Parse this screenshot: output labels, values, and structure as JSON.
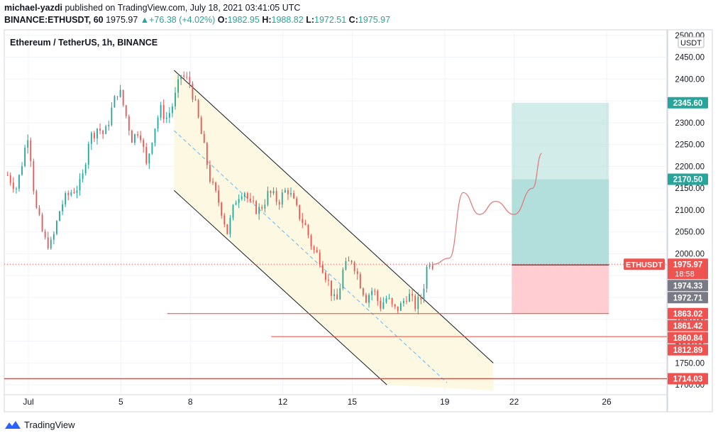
{
  "header": {
    "author": "michael-yazdi",
    "published_text": "published on TradingView.com, July 18, 2021 03:41:05 UTC",
    "symbol_line": "BINANCE:ETHUSDT, 60",
    "last": "1975.97",
    "change": "▲+76.38 (+4.02%)",
    "o_label": "O:",
    "o": "1982.95",
    "h_label": "H:",
    "h": "1988.82",
    "l_label": "L:",
    "l": "1972.51",
    "c_label": "C:",
    "c": "1975.97"
  },
  "footer": {
    "brand": "TradingView",
    "logo_icon": "tradingview-logo-icon"
  },
  "chart_data": {
    "type": "candlestick",
    "title": "Ethereum / TetherUS, 1h, BINANCE",
    "currency_label": "USDT",
    "ylim": [
      1700,
      2500
    ],
    "y_ticks": [
      1700,
      1750,
      1800,
      1850,
      1900,
      1950,
      2000,
      2050,
      2100,
      2150,
      2200,
      2250,
      2300,
      2350,
      2400,
      2450,
      2500
    ],
    "x_ticks": [
      {
        "label": "Jul",
        "day": 1
      },
      {
        "label": "5",
        "day": 5
      },
      {
        "label": "8",
        "day": 8
      },
      {
        "label": "12",
        "day": 12
      },
      {
        "label": "15",
        "day": 15
      },
      {
        "label": "19",
        "day": 19
      },
      {
        "label": "22",
        "day": 22
      },
      {
        "label": "26",
        "day": 26
      }
    ],
    "price_path": [
      [
        0.1,
        2180
      ],
      [
        0.5,
        2150
      ],
      [
        1.0,
        2280
      ],
      [
        1.3,
        2110
      ],
      [
        1.7,
        2030
      ],
      [
        2.0,
        2020
      ],
      [
        2.4,
        2110
      ],
      [
        2.8,
        2140
      ],
      [
        3.3,
        2160
      ],
      [
        3.6,
        2260
      ],
      [
        4.0,
        2290
      ],
      [
        4.3,
        2270
      ],
      [
        4.6,
        2330
      ],
      [
        4.9,
        2380
      ],
      [
        5.2,
        2320
      ],
      [
        5.5,
        2260
      ],
      [
        5.8,
        2290
      ],
      [
        6.1,
        2200
      ],
      [
        6.4,
        2280
      ],
      [
        6.7,
        2330
      ],
      [
        7.0,
        2310
      ],
      [
        7.3,
        2350
      ],
      [
        7.6,
        2410
      ],
      [
        8.0,
        2390
      ],
      [
        8.3,
        2320
      ],
      [
        8.6,
        2240
      ],
      [
        8.9,
        2160
      ],
      [
        9.3,
        2110
      ],
      [
        9.6,
        2050
      ],
      [
        10.0,
        2130
      ],
      [
        10.3,
        2150
      ],
      [
        10.6,
        2110
      ],
      [
        11.0,
        2100
      ],
      [
        11.4,
        2140
      ],
      [
        11.8,
        2120
      ],
      [
        12.2,
        2150
      ],
      [
        12.6,
        2100
      ],
      [
        13.0,
        2060
      ],
      [
        13.3,
        2010
      ],
      [
        13.6,
        1990
      ],
      [
        14.0,
        1930
      ],
      [
        14.3,
        1880
      ],
      [
        14.6,
        1960
      ],
      [
        15.0,
        1990
      ],
      [
        15.3,
        1940
      ],
      [
        15.6,
        1900
      ],
      [
        15.9,
        1920
      ],
      [
        16.2,
        1880
      ],
      [
        16.5,
        1900
      ],
      [
        16.8,
        1870
      ],
      [
        17.1,
        1880
      ],
      [
        17.4,
        1910
      ],
      [
        17.7,
        1880
      ],
      [
        18.0,
        1900
      ],
      [
        18.3,
        1990
      ],
      [
        18.5,
        1976
      ]
    ],
    "last_price": 1975.97,
    "last_price_countdown": "18:58",
    "projection_path": [
      [
        18.5,
        1976
      ],
      [
        19.2,
        1990
      ],
      [
        19.8,
        2140
      ],
      [
        20.5,
        2090
      ],
      [
        21.2,
        2120
      ],
      [
        22.0,
        2090
      ],
      [
        22.8,
        2150
      ],
      [
        23.2,
        2230
      ]
    ],
    "position": {
      "entry": 1974.33,
      "stop": 1863.02,
      "target1": 2170.5,
      "target2": 2345.6
    },
    "levels": [
      1863.02,
      1860.84,
      1714.03
    ],
    "channel": {
      "upper": [
        [
          7.3,
          2420
        ],
        [
          21.1,
          1750
        ]
      ],
      "lower": [
        [
          7.3,
          2145
        ],
        [
          16.5,
          1700
        ]
      ],
      "mid": [
        [
          7.3,
          2282
        ],
        [
          19.1,
          1705
        ]
      ]
    },
    "price_labels": [
      {
        "text": "2345.60",
        "value": 2345.6,
        "color": "#26a69a"
      },
      {
        "text": "2170.50",
        "value": 2170.5,
        "color": "#26a69a"
      },
      {
        "text": "1975.97",
        "value": 1975.97,
        "color": "#ef5350",
        "sub": "18:58"
      },
      {
        "text": "1974.33",
        "value": 1974.33,
        "color": "#787b86"
      },
      {
        "text": "1972.71",
        "value": 1972.71,
        "color": "#787b86"
      },
      {
        "text": "1863.02",
        "value": 1863.02,
        "color": "#ef5350"
      },
      {
        "text": "1861.42",
        "value": 1861.42,
        "color": "#ef5350"
      },
      {
        "text": "1860.84",
        "value": 1860.84,
        "color": "#ef5350"
      },
      {
        "text": "1812.89",
        "value": 1812.89,
        "color": "#ef5350"
      },
      {
        "text": "1714.03",
        "value": 1714.03,
        "color": "#ef5350"
      }
    ],
    "symbol_tag": "ETHUSDT",
    "colors": {
      "up": "#26a69a",
      "down": "#ef5350",
      "channel_fill": "#fdf8e1",
      "target_zone": "#b2dfdb",
      "stop_zone": "#ffcdd2",
      "level": "#f44336",
      "projection": "#e57373",
      "midline": "#64b5f6",
      "grid": "#f0f3fa"
    }
  }
}
